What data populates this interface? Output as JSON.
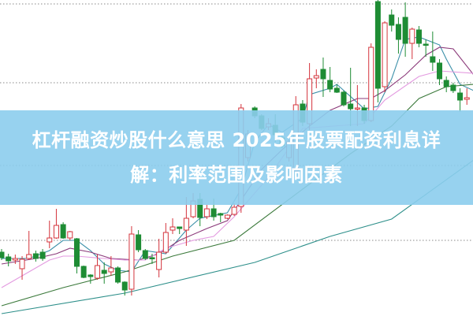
{
  "headline": {
    "line1": "杠杆融资炒股什么意思 2025年股票配资利息详",
    "line2": "解：利率范围及影响因素"
  },
  "colors": {
    "up": "#d4343c",
    "down": "#1e8c34",
    "banner": "#8ccded",
    "grid": "#888888"
  },
  "chart_data": {
    "type": "candlestick",
    "title": "",
    "grid": true,
    "ylim": [
      0,
      40
    ],
    "candles_ohlc": [
      [
        8.0,
        8.4,
        7.0,
        7.3
      ],
      [
        7.4,
        7.8,
        6.2,
        6.9
      ],
      [
        7.0,
        7.7,
        6.5,
        7.2
      ],
      [
        5.9,
        7.5,
        4.5,
        7.1
      ],
      [
        7.2,
        10.7,
        7.0,
        7.7
      ],
      [
        7.8,
        8.2,
        6.8,
        7.2
      ],
      [
        8.0,
        8.4,
        6.9,
        7.2
      ],
      [
        9.3,
        12.0,
        8.5,
        9.8
      ],
      [
        9.8,
        13.5,
        9.7,
        11.4
      ],
      [
        11.5,
        11.8,
        9.7,
        9.8
      ],
      [
        9.8,
        10.7,
        9.5,
        10.6
      ],
      [
        9.7,
        9.8,
        5.3,
        6.2
      ],
      [
        6.2,
        6.3,
        4.7,
        4.8
      ],
      [
        5.1,
        5.2,
        4.0,
        4.9
      ],
      [
        4.7,
        7.7,
        4.5,
        6.3
      ],
      [
        5.7,
        6.7,
        4.0,
        5.3
      ],
      [
        5.5,
        7.5,
        5.0,
        6.0
      ],
      [
        6.0,
        6.2,
        4.0,
        4.2
      ],
      [
        4.2,
        4.3,
        2.5,
        3.2
      ],
      [
        3.3,
        11.3,
        2.5,
        10.3
      ],
      [
        10.2,
        10.8,
        8.0,
        8.3
      ],
      [
        8.2,
        8.4,
        7.0,
        7.2
      ],
      [
        7.3,
        7.8,
        6.5,
        7.2
      ],
      [
        5.8,
        9.7,
        4.8,
        8.0
      ],
      [
        8.0,
        11.7,
        7.8,
        10.5
      ],
      [
        10.8,
        12.3,
        10.3,
        11.2
      ],
      [
        11.2,
        11.2,
        10.3,
        11.0
      ],
      [
        10.8,
        15.0,
        8.8,
        12.3
      ],
      [
        12.5,
        15.5,
        12.3,
        14.5
      ],
      [
        14.7,
        15.5,
        11.3,
        12.4
      ],
      [
        12.5,
        14.0,
        12.2,
        13.5
      ],
      [
        13.5,
        14.8,
        12.0,
        12.5
      ],
      [
        12.9,
        13.0,
        11.8,
        12.7
      ],
      [
        12.3,
        12.8,
        12.2,
        12.7
      ],
      [
        12.8,
        14.2,
        12.6,
        13.7
      ],
      [
        13.8,
        26.8,
        13.0,
        26.3
      ],
      [
        20.0,
        23.5,
        19.5,
        23.0
      ],
      [
        26.3,
        26.5,
        25.0,
        25.3
      ],
      [
        25.3,
        25.5,
        23.5,
        23.7
      ],
      [
        23.9,
        25.0,
        23.5,
        24.3
      ],
      [
        24.1,
        25.5,
        22.0,
        22.9
      ],
      [
        22.5,
        23.0,
        21.2,
        21.5
      ],
      [
        20.0,
        22.3,
        19.5,
        22.0
      ],
      [
        18.3,
        27.8,
        17.5,
        26.7
      ],
      [
        26.8,
        27.3,
        24.0,
        24.5
      ],
      [
        24.3,
        32.0,
        23.5,
        30.0
      ],
      [
        30.1,
        31.2,
        28.8,
        30.4
      ],
      [
        31.2,
        32.7,
        27.7,
        30.0
      ],
      [
        29.8,
        31.5,
        28.3,
        28.7
      ],
      [
        28.8,
        29.3,
        28.2,
        28.3
      ],
      [
        28.3,
        28.5,
        26.5,
        26.7
      ],
      [
        26.8,
        31.4,
        24.0,
        26.2
      ],
      [
        26.2,
        29.2,
        24.0,
        26.3
      ],
      [
        26.3,
        26.7,
        24.3,
        24.7
      ],
      [
        24.7,
        34.5,
        24.5,
        34.0
      ],
      [
        39.8,
        40.0,
        27.0,
        28.8
      ],
      [
        29.0,
        37.3,
        28.3,
        37.1
      ],
      [
        38.1,
        38.8,
        36.0,
        36.8
      ],
      [
        36.9,
        37.8,
        33.2,
        35.0
      ],
      [
        37.8,
        39.7,
        32.8,
        34.5
      ],
      [
        34.5,
        36.5,
        32.5,
        36.3
      ],
      [
        36.2,
        36.7,
        34.0,
        34.5
      ],
      [
        34.4,
        35.0,
        32.8,
        34.3
      ],
      [
        32.8,
        36.0,
        31.0,
        32.1
      ],
      [
        32.0,
        32.5,
        29.2,
        30.0
      ],
      [
        29.8,
        30.3,
        28.3,
        29.0
      ],
      [
        29.2,
        29.5,
        28.2,
        28.5
      ],
      [
        28.2,
        28.8,
        25.8,
        27.3
      ],
      [
        27.4,
        28.8,
        26.7,
        27.6
      ]
    ],
    "moving_averages": [
      {
        "color": "#3a8fa8",
        "points": [
          [
            0,
            7.2
          ],
          [
            4,
            7.2
          ],
          [
            7,
            8.2
          ],
          [
            9,
            9.5
          ],
          [
            11,
            9.5
          ],
          [
            13,
            8.2
          ],
          [
            15,
            6.5
          ],
          [
            17,
            5.7
          ],
          [
            19,
            5.5
          ],
          [
            21,
            8.2
          ],
          [
            24,
            7.8
          ],
          [
            27,
            10.8
          ],
          [
            29,
            12.3
          ],
          [
            33,
            13.0
          ],
          [
            35,
            16.0
          ],
          [
            37,
            22.0
          ],
          [
            39,
            24.2
          ],
          [
            41,
            23.2
          ],
          [
            44,
            25.0
          ],
          [
            45,
            28.0
          ],
          [
            48,
            28.8
          ],
          [
            49,
            29.3
          ],
          [
            53,
            26.2
          ],
          [
            55,
            26.5
          ],
          [
            57,
            30.0
          ],
          [
            59,
            35.0
          ],
          [
            61,
            35.3
          ],
          [
            64,
            34.3
          ],
          [
            65,
            32.5
          ],
          [
            67,
            29.3
          ],
          [
            69,
            28.5
          ]
        ]
      },
      {
        "color": "#8b3a7a",
        "points": [
          [
            0,
            6.5
          ],
          [
            5,
            7.2
          ],
          [
            8,
            7.8
          ],
          [
            10,
            8.5
          ],
          [
            13,
            8.0
          ],
          [
            16,
            7.2
          ],
          [
            20,
            7.0
          ],
          [
            23,
            7.8
          ],
          [
            26,
            9.5
          ],
          [
            30,
            11.0
          ],
          [
            33,
            12.0
          ],
          [
            38,
            18.5
          ],
          [
            41,
            21.0
          ],
          [
            45,
            24.0
          ],
          [
            48,
            26.0
          ],
          [
            52,
            27.5
          ],
          [
            54,
            27.5
          ],
          [
            56,
            28.5
          ],
          [
            59,
            30.5
          ],
          [
            62,
            33.0
          ],
          [
            64,
            34.0
          ],
          [
            66,
            33.8
          ],
          [
            69,
            30.5
          ]
        ]
      },
      {
        "color": "#e39ae0",
        "points": [
          [
            0,
            3.5
          ],
          [
            3,
            5.0
          ],
          [
            7,
            7.0
          ],
          [
            9,
            7.5
          ],
          [
            11,
            7.5
          ],
          [
            15,
            7.2
          ],
          [
            18,
            7.0
          ],
          [
            21,
            7.0
          ],
          [
            24,
            8.5
          ],
          [
            28,
            9.5
          ],
          [
            31,
            10.0
          ],
          [
            34,
            12.5
          ],
          [
            39,
            17.5
          ],
          [
            44,
            23.7
          ],
          [
            53,
            24.3
          ],
          [
            56,
            27.3
          ],
          [
            61,
            30.3
          ],
          [
            64,
            31.0
          ],
          [
            69,
            30.7
          ]
        ]
      },
      {
        "color": "#3c7a3c",
        "points": [
          [
            0,
            1.2
          ],
          [
            9,
            3.5
          ],
          [
            18,
            5.5
          ],
          [
            25,
            7.5
          ],
          [
            34,
            9.5
          ],
          [
            44,
            16.0
          ],
          [
            51,
            20.5
          ],
          [
            57,
            24.0
          ],
          [
            61,
            27.5
          ],
          [
            65,
            29.0
          ],
          [
            69,
            29.3
          ]
        ]
      },
      {
        "color": "#2d8f8a",
        "points": [
          [
            0,
            0.2
          ],
          [
            18,
            2.8
          ],
          [
            37,
            6.7
          ],
          [
            48,
            10.0
          ],
          [
            57,
            12.2
          ],
          [
            69,
            19.7
          ]
        ]
      }
    ]
  }
}
